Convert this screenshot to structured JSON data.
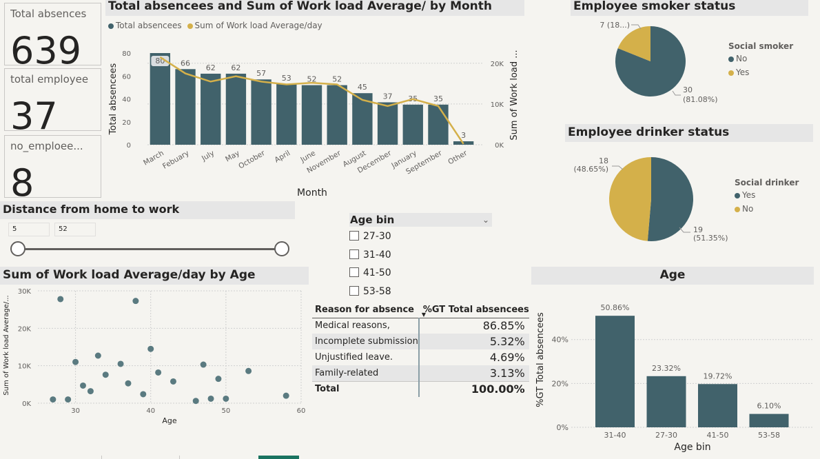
{
  "kpis": [
    {
      "title": "Total absences",
      "value": "639"
    },
    {
      "title": "total employee",
      "value": "37"
    },
    {
      "title": "no_emploee...",
      "value": "8"
    }
  ],
  "month_chart": {
    "header": "Total absencees and Sum of Work load Average/ by Month",
    "legend": [
      {
        "label": "Total absencees",
        "color": "#41626b"
      },
      {
        "label": "Sum of Work load Average/day",
        "color": "#d4b04a"
      }
    ],
    "y_left_label": "Total absencees",
    "y_right_label": "Sum of Work load ...",
    "x_label": "Month",
    "left_ticks": [
      "0",
      "20",
      "40",
      "60",
      "80"
    ],
    "right_ticks": [
      "0K",
      "10K",
      "20K"
    ]
  },
  "smoker": {
    "header": "Employee smoker status",
    "legend_title": "Social smoker",
    "legend": [
      {
        "label": "No",
        "color": "#41626b"
      },
      {
        "label": "Yes",
        "color": "#d4b04a"
      }
    ],
    "label_small": "7 (18...)",
    "label_big_1": "30",
    "label_big_2": "(81.08%)"
  },
  "drinker": {
    "header": "Employee drinker status",
    "legend_title": "Social drinker",
    "legend": [
      {
        "label": "Yes",
        "color": "#41626b"
      },
      {
        "label": "No",
        "color": "#d4b04a"
      }
    ],
    "label_a_1": "18",
    "label_a_2": "(48.65%)",
    "label_b_1": "19",
    "label_b_2": "(51.35%)"
  },
  "distance": {
    "header": "Distance from home to work",
    "min": "5",
    "max": "52"
  },
  "age_slicer": {
    "header": "Age bin",
    "items": [
      "27-30",
      "31-40",
      "41-50",
      "53-58"
    ]
  },
  "matrix": {
    "col1": "Reason for absence",
    "col2": "%GT Total absencees",
    "rows": [
      {
        "reason": "Medical reasons,",
        "pct": "86.85%"
      },
      {
        "reason": "Incomplete submission",
        "pct": "5.32%"
      },
      {
        "reason": "Unjustified leave.",
        "pct": "4.69%"
      },
      {
        "reason": "Family-related",
        "pct": "3.13%"
      }
    ],
    "total_label": "Total",
    "total_value": "100.00%"
  },
  "scatter": {
    "header": "Sum of Work load Average/day by Age",
    "y_label": "Sum of Work load Average/...",
    "x_label": "Age"
  },
  "age_chart": {
    "header": "Age",
    "y_label": "%GT Total absencees",
    "x_label": "Age bin"
  },
  "chart_data": [
    {
      "type": "bar",
      "title": "Total absencees and Sum of Work load Average/ by Month",
      "xlabel": "Month",
      "ylabel": "Total absencees",
      "y2label": "Sum of Work load ...",
      "categories": [
        "March",
        "Febuary",
        "July",
        "May",
        "October",
        "April",
        "June",
        "November",
        "August",
        "December",
        "January",
        "September",
        "Other"
      ],
      "series": [
        {
          "name": "Total absencees",
          "type": "bar",
          "axis": "left",
          "values": [
            80,
            66,
            62,
            62,
            57,
            53,
            52,
            52,
            45,
            37,
            35,
            35,
            3
          ]
        },
        {
          "name": "Sum of Work load Average/day",
          "type": "line",
          "axis": "right",
          "values": [
            21500,
            17500,
            15500,
            16800,
            15500,
            14800,
            15200,
            14800,
            11000,
            9500,
            11200,
            9500,
            200
          ]
        }
      ],
      "ylim": [
        0,
        80
      ],
      "y2lim": [
        0,
        20000
      ],
      "grid": true,
      "legend": "top-left"
    },
    {
      "type": "pie",
      "title": "Employee smoker status",
      "legend_title": "Social smoker",
      "categories": [
        "No",
        "Yes"
      ],
      "values": [
        30,
        7
      ],
      "percentages": [
        81.08,
        18.92
      ],
      "legend": "right"
    },
    {
      "type": "pie",
      "title": "Employee drinker status",
      "legend_title": "Social drinker",
      "categories": [
        "Yes",
        "No"
      ],
      "values": [
        19,
        18
      ],
      "percentages": [
        51.35,
        48.65
      ],
      "legend": "right"
    },
    {
      "type": "scatter",
      "title": "Sum of Work load Average/day by Age",
      "xlabel": "Age",
      "ylabel": "Sum of Work load Average/...",
      "x": [
        27,
        28,
        29,
        30,
        31,
        32,
        33,
        34,
        36,
        37,
        38,
        39,
        40,
        41,
        43,
        46,
        47,
        48,
        49,
        50,
        53,
        58
      ],
      "y": [
        1000,
        27800,
        1000,
        11000,
        4700,
        3200,
        12700,
        7600,
        10500,
        5300,
        27300,
        2400,
        14500,
        8200,
        5800,
        600,
        10300,
        1200,
        6500,
        1200,
        8600,
        2000
      ],
      "xlim": [
        27,
        60
      ],
      "ylim": [
        0,
        30000
      ],
      "x_ticks": [
        30,
        40,
        50,
        60
      ],
      "y_ticks": [
        "0K",
        "10K",
        "20K",
        "30K"
      ],
      "grid": true
    },
    {
      "type": "bar",
      "title": "Age",
      "xlabel": "Age bin",
      "ylabel": "%GT Total absencees",
      "categories": [
        "31-40",
        "27-30",
        "41-50",
        "53-58"
      ],
      "values": [
        50.86,
        23.32,
        19.72,
        6.1
      ],
      "labels": [
        "50.86%",
        "23.32%",
        "19.72%",
        "6.10%"
      ],
      "ylim": [
        0,
        55
      ],
      "y_ticks": [
        "0%",
        "20%",
        "40%"
      ],
      "grid": true
    }
  ]
}
